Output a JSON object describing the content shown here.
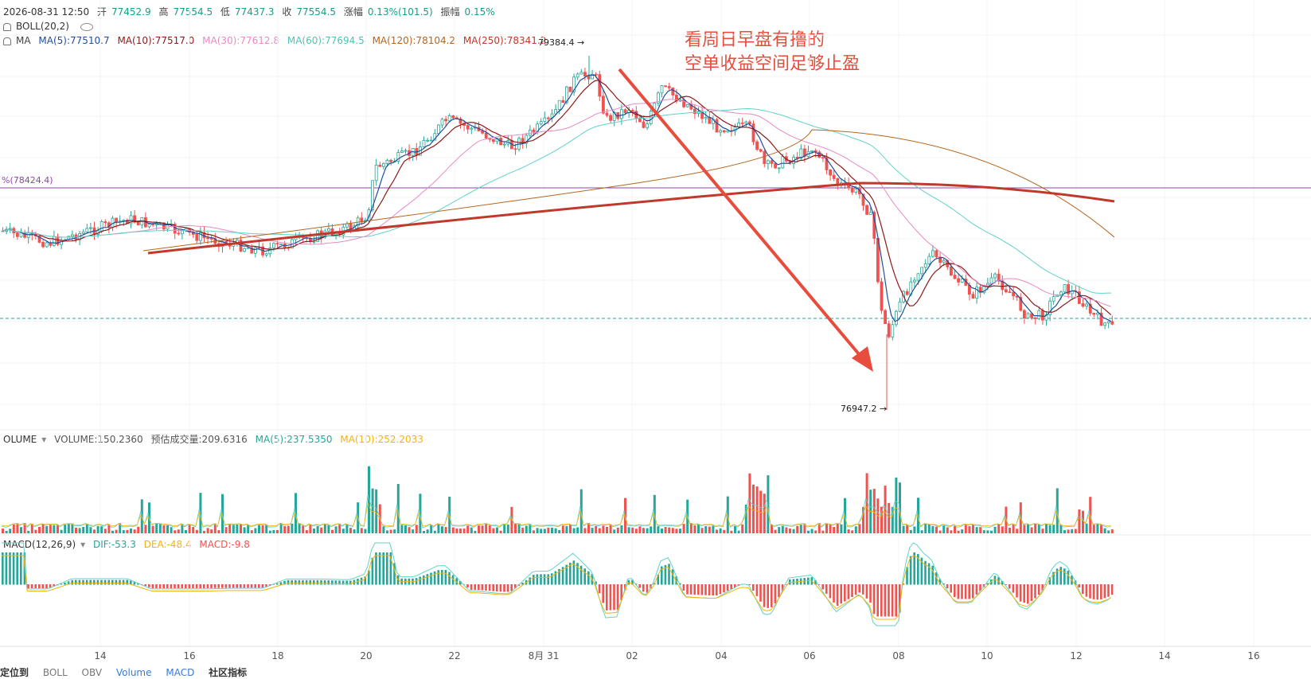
{
  "header": {
    "datetime": "2026-08-31 12:50",
    "open_label": "开",
    "open": "77452.9",
    "high_label": "高",
    "high": "77554.5",
    "low_label": "低",
    "low": "77437.3",
    "close_label": "收",
    "close": "77554.5",
    "change_label": "涨幅",
    "change": "0.13%(101.5)",
    "amp_label": "振幅",
    "amp": "0.15%"
  },
  "indicators": {
    "boll": "BOLL(20,2)",
    "ma_label": "MA",
    "ma5": "MA(5):77510.7",
    "ma10": "MA(10):77517.0",
    "ma30": "MA(30):77612.8",
    "ma60": "MA(60):77694.5",
    "ma120": "MA(120):78104.2",
    "ma250": "MA(250):78341.2",
    "hline_label": "%(78424.4)",
    "high_marker": "79384.4 →",
    "low_marker": "76947.2 →"
  },
  "volume": {
    "label": "OLUME",
    "volume": "VOLUME:150.2360",
    "estimate": "预估成交量:209.6316",
    "ma5": "MA(5):237.5350",
    "ma10": "MA(10):252.2033"
  },
  "macd": {
    "label": "MACD(12,26,9)",
    "dif": "DIF:-53.3",
    "dea": "DEA:-48.4",
    "macd": "MACD:-9.8"
  },
  "annotation": {
    "line1": "看周日早盘有撸的",
    "line2": "空单收益空间足够止盈"
  },
  "x_axis": [
    "14",
    "16",
    "18",
    "20",
    "22",
    "8月 31",
    "02",
    "04",
    "06",
    "08",
    "10",
    "12",
    "14",
    "16"
  ],
  "tabs": [
    "定位到",
    "BOLL",
    "OBV",
    "Volume",
    "MACD",
    "社区指标"
  ],
  "colors": {
    "up": "#26a69a",
    "down": "#ef5350",
    "ma5": "#1f4e9c",
    "ma10": "#8b1a1a",
    "ma30": "#e78ac3",
    "ma60": "#5fd3c7",
    "ma120": "#b5651d",
    "ma250": "#c0392b",
    "hline": "#8e44ad",
    "arrow": "#e74c3c"
  }
}
